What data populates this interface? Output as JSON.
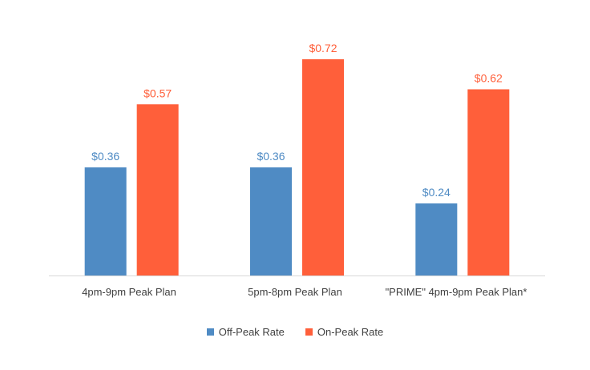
{
  "chart_data": {
    "type": "bar",
    "categories": [
      "4pm-9pm Peak Plan",
      "5pm-8pm Peak Plan",
      "\"PRIME\" 4pm-9pm Peak Plan*"
    ],
    "series": [
      {
        "name": "Off-Peak Rate",
        "values": [
          0.36,
          0.36,
          0.24
        ],
        "labels": [
          "$0.36",
          "$0.36",
          "$0.24"
        ],
        "color": "#4f8bc4"
      },
      {
        "name": "On-Peak Rate",
        "values": [
          0.57,
          0.72,
          0.62
        ],
        "labels": [
          "$0.57",
          "$0.72",
          "$0.62"
        ],
        "color": "#ff5f3a"
      }
    ],
    "ylim": [
      0,
      0.72
    ],
    "grid": false,
    "legend_position": "bottom"
  }
}
